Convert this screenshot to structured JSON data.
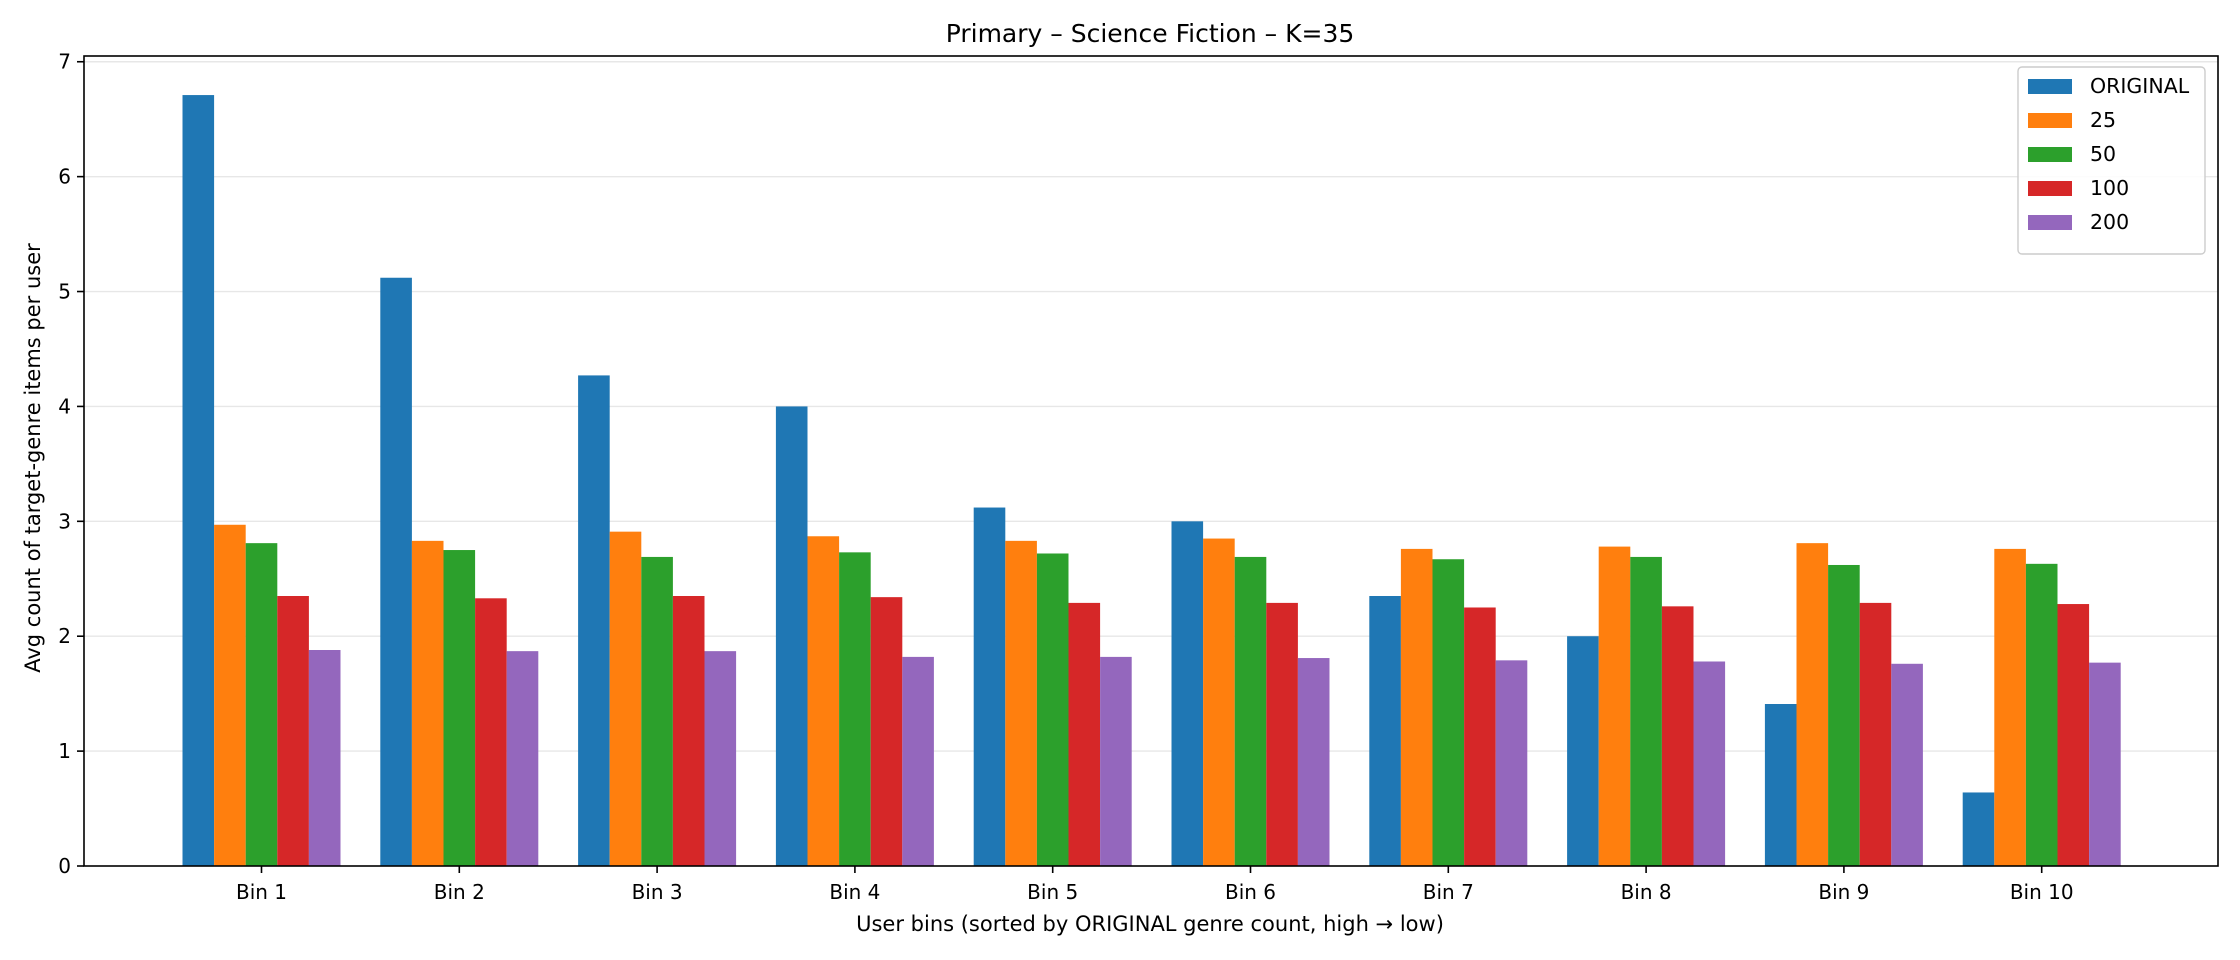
{
  "chart_data": {
    "type": "bar",
    "title": "Primary – Science Fiction – K=35",
    "xlabel": "User bins (sorted by ORIGINAL genre count, high → low)",
    "ylabel": "Avg count of target-genre items per user",
    "ylim": [
      0,
      7.05
    ],
    "yticks": [
      0,
      1,
      2,
      3,
      4,
      5,
      6,
      7
    ],
    "grid": "y",
    "legend_position": "top-right",
    "categories": [
      "Bin 1",
      "Bin 2",
      "Bin 3",
      "Bin 4",
      "Bin 5",
      "Bin 6",
      "Bin 7",
      "Bin 8",
      "Bin 9",
      "Bin 10"
    ],
    "series": [
      {
        "name": "ORIGINAL",
        "color": "#1f77b4",
        "values": [
          6.71,
          5.12,
          4.27,
          4.0,
          3.12,
          3.0,
          2.35,
          2.0,
          1.41,
          0.64
        ]
      },
      {
        "name": "25",
        "color": "#ff7f0e",
        "values": [
          2.97,
          2.83,
          2.91,
          2.87,
          2.83,
          2.85,
          2.76,
          2.78,
          2.81,
          2.76
        ]
      },
      {
        "name": "50",
        "color": "#2ca02c",
        "values": [
          2.81,
          2.75,
          2.69,
          2.73,
          2.72,
          2.69,
          2.67,
          2.69,
          2.62,
          2.63
        ]
      },
      {
        "name": "100",
        "color": "#d62728",
        "values": [
          2.35,
          2.33,
          2.35,
          2.34,
          2.29,
          2.29,
          2.25,
          2.26,
          2.29,
          2.28
        ]
      },
      {
        "name": "200",
        "color": "#9467bd",
        "values": [
          1.88,
          1.87,
          1.87,
          1.82,
          1.82,
          1.81,
          1.79,
          1.78,
          1.76,
          1.77
        ]
      }
    ]
  }
}
